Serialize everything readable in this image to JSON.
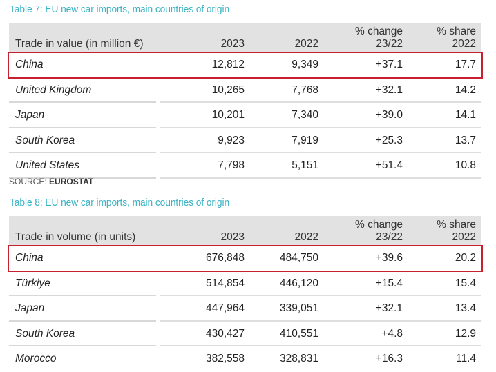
{
  "table7": {
    "title": "Table 7: EU new car imports, main countries of origin",
    "header": {
      "label": "Trade in value (in million €)",
      "col_2023": "2023",
      "col_2022": "2022",
      "col_change_line1": "% change",
      "col_change_line2": "23/22",
      "col_share_line1": "% share",
      "col_share_line2": "2022"
    },
    "rows": [
      {
        "country": "China",
        "v2023": "12,812",
        "v2022": "9,349",
        "change": "+37.1",
        "share": "17.7",
        "highlighted": true
      },
      {
        "country": "United Kingdom",
        "v2023": "10,265",
        "v2022": "7,768",
        "change": "+32.1",
        "share": "14.2"
      },
      {
        "country": "Japan",
        "v2023": "10,201",
        "v2022": "7,340",
        "change": "+39.0",
        "share": "14.1"
      },
      {
        "country": "South Korea",
        "v2023": "9,923",
        "v2022": "7,919",
        "change": "+25.3",
        "share": "13.7"
      },
      {
        "country": "United States",
        "v2023": "7,798",
        "v2022": "5,151",
        "change": "+51.4",
        "share": "10.8"
      }
    ],
    "source_prefix": "SOURCE:",
    "source_name": "EUROSTAT"
  },
  "table8": {
    "title": "Table 8: EU new car imports, main countries of origin",
    "header": {
      "label": "Trade in volume (in units)",
      "col_2023": "2023",
      "col_2022": "2022",
      "col_change_line1": "% change",
      "col_change_line2": "23/22",
      "col_share_line1": "% share",
      "col_share_line2": "2022"
    },
    "rows": [
      {
        "country": "China",
        "v2023": "676,848",
        "v2022": "484,750",
        "change": "+39.6",
        "share": "20.2",
        "highlighted": true
      },
      {
        "country": "Türkiye",
        "v2023": "514,854",
        "v2022": "446,120",
        "change": "+15.4",
        "share": "15.4"
      },
      {
        "country": "Japan",
        "v2023": "447,964",
        "v2022": "339,051",
        "change": "+32.1",
        "share": "13.4"
      },
      {
        "country": "South Korea",
        "v2023": "430,427",
        "v2022": "410,551",
        "change": "+4.8",
        "share": "12.9"
      },
      {
        "country": "Morocco",
        "v2023": "382,558",
        "v2022": "328,831",
        "change": "+16.3",
        "share": "11.4"
      }
    ]
  },
  "colors": {
    "title": "#3bb3c3",
    "header_bg": "#e2e2e2",
    "highlight_border": "#c8202f"
  }
}
